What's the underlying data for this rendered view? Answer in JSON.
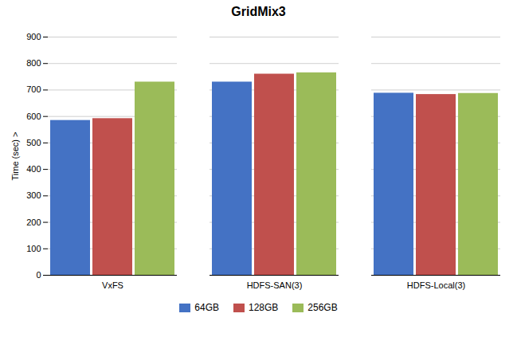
{
  "chart_data": {
    "type": "bar",
    "title": "GridMix3",
    "ylabel": "Time (sec) >",
    "categories": [
      "VxFS",
      "HDFS-SAN(3)",
      "HDFS-Local(3)"
    ],
    "series": [
      {
        "name": "64GB",
        "color": "#4472C4",
        "values": [
          585,
          730,
          688
        ]
      },
      {
        "name": "128GB",
        "color": "#C0504D",
        "values": [
          592,
          760,
          683
        ]
      },
      {
        "name": "256GB",
        "color": "#9BBB59",
        "values": [
          730,
          765,
          687
        ]
      }
    ],
    "ylim": [
      0,
      900
    ],
    "yticks": [
      0,
      100,
      200,
      300,
      400,
      500,
      600,
      700,
      800,
      900
    ],
    "grid": true,
    "legend": "bottom"
  }
}
